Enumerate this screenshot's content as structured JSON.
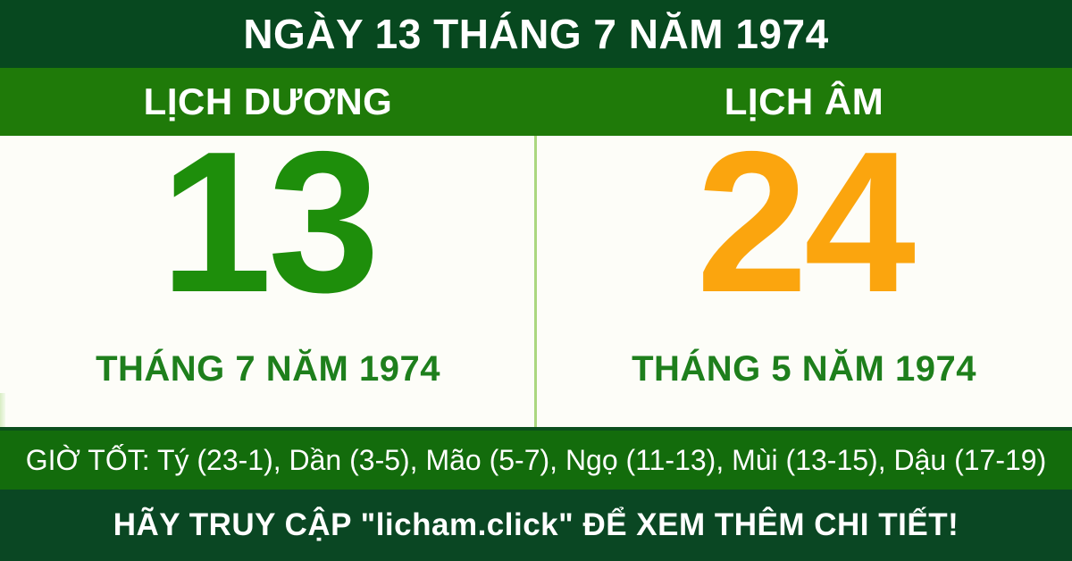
{
  "header": {
    "title": "NGÀY 13 THÁNG 7 NĂM 1974"
  },
  "columns": {
    "solar": {
      "header": "LỊCH DƯƠNG",
      "day": "13",
      "month_year": "THÁNG 7 NĂM 1974"
    },
    "lunar": {
      "header": "LỊCH ÂM",
      "day": "24",
      "month_year": "THÁNG 5 NĂM 1974"
    }
  },
  "good_hours": {
    "text": "GIỜ TỐT: Tý (23-1), Dần (3-5), Mão (5-7), Ngọ (11-13), Mùi (13-15), Dậu (17-19)"
  },
  "footer": {
    "text": "HÃY TRUY CẬP \"licham.click\" ĐỂ XEM THÊM CHI TIẾT!"
  },
  "colors": {
    "header_bg": "#07481f",
    "subheader_bg": "#1f7a09",
    "body_bg": "#fdfdf8",
    "divider": "#abd77f",
    "solar_green": "#1e8e0b",
    "lunar_orange": "#fba50e",
    "label_green": "#1e7f1c",
    "good_hours_bg": "#136c0c",
    "footer_bg": "#0a4723",
    "text_light": "#ffffff"
  }
}
